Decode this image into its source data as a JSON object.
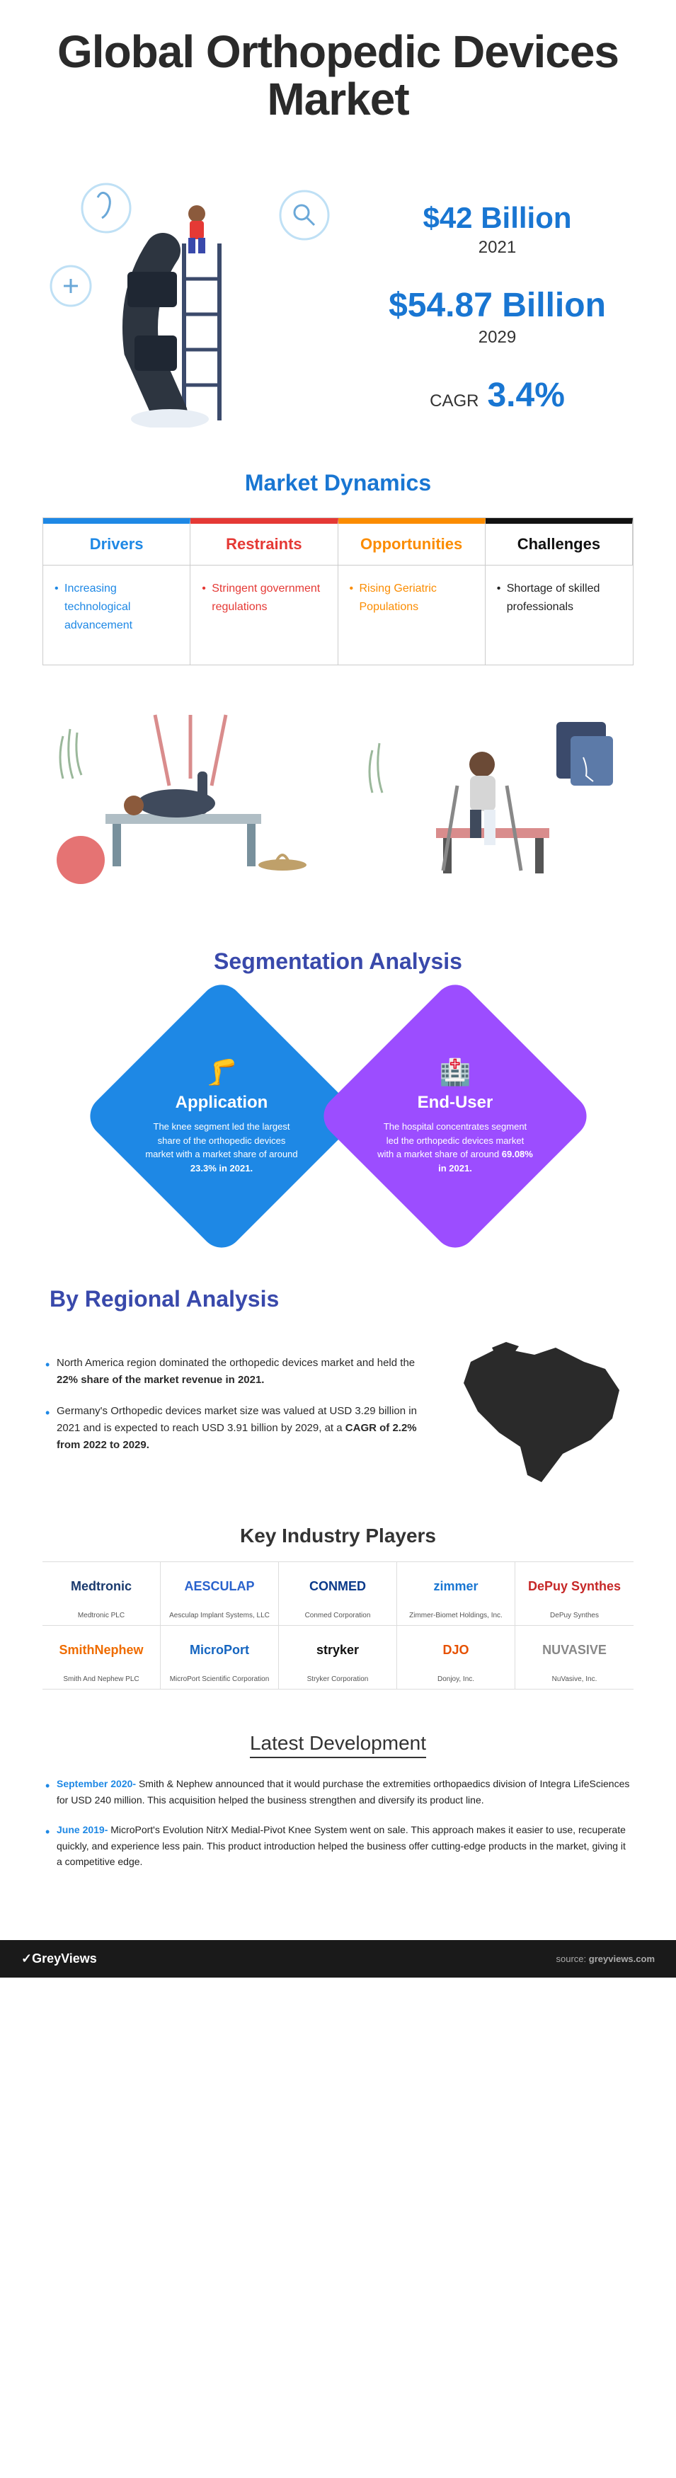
{
  "title": "Global Orthopedic Devices Market",
  "hero": {
    "stat1_value": "$42 Billion",
    "stat1_year": "2021",
    "stat2_value": "$54.87 Billion",
    "stat2_year": "2029",
    "cagr_label": "CAGR",
    "cagr_value": "3.4%"
  },
  "colors": {
    "primary_blue": "#1976d2",
    "accent_blue": "#1e88e5",
    "red": "#e53935",
    "orange": "#fb8c00",
    "dark": "#111111",
    "purple": "#9c4dff",
    "indigo": "#3949ab",
    "footer_bg": "#1a1a1a"
  },
  "dynamics": {
    "title": "Market Dynamics",
    "headers": {
      "drivers": "Drivers",
      "restraints": "Restraints",
      "opportunities": "Opportunities",
      "challenges": "Challenges"
    },
    "items": {
      "drivers": "Increasing technological advancement",
      "restraints": "Stringent government regulations",
      "opportunities": "Rising Geriatric Populations",
      "challenges": "Shortage of skilled professionals"
    }
  },
  "segmentation": {
    "title": "Segmentation Analysis",
    "application": {
      "label": "Application",
      "text_pre": "The knee segment led the largest share of the orthopedic devices market with a market share of around ",
      "bold": "23.3% in 2021.",
      "icon": "🦵"
    },
    "enduser": {
      "label": "End-User",
      "text_pre": "The hospital concentrates segment led the orthopedic devices market with a market share of around ",
      "bold": "69.08% in 2021.",
      "icon": "🏥"
    }
  },
  "regional": {
    "title": "By Regional Analysis",
    "point1_pre": "North America region dominated the orthopedic devices market and held the ",
    "point1_bold": "22% share of the market revenue in 2021.",
    "point2_pre": "Germany's Orthopedic devices market size was valued at USD 3.29 billion in 2021 and is expected to reach USD 3.91 billion by 2029, at a ",
    "point2_bold": "CAGR of 2.2% from 2022 to 2029."
  },
  "players": {
    "title": "Key Industry Players",
    "list": [
      {
        "logo": "Medtronic",
        "name": "Medtronic PLC",
        "color": "#1a3a6e"
      },
      {
        "logo": "AESCULAP",
        "name": "Aesculap Implant Systems, LLC",
        "color": "#2962cc"
      },
      {
        "logo": "CONMED",
        "name": "Conmed Corporation",
        "color": "#0b3a8a"
      },
      {
        "logo": "zimmer",
        "name": "Zimmer-Biomet Holdings, Inc.",
        "color": "#1976d2"
      },
      {
        "logo": "DePuy Synthes",
        "name": "DePuy Synthes",
        "color": "#c62828"
      },
      {
        "logo": "SmithNephew",
        "name": "Smith And Nephew PLC",
        "color": "#ef6c00"
      },
      {
        "logo": "MicroPort",
        "name": "MicroPort Scientific Corporation",
        "color": "#1565c0"
      },
      {
        "logo": "stryker",
        "name": "Stryker Corporation",
        "color": "#111111"
      },
      {
        "logo": "DJO",
        "name": "Donjoy, Inc.",
        "color": "#e65100"
      },
      {
        "logo": "NUVASIVE",
        "name": "NuVasive, Inc.",
        "color": "#888888"
      }
    ]
  },
  "developments": {
    "title": "Latest Development",
    "items": [
      {
        "date": "September 2020- ",
        "text": "Smith & Nephew announced that it would purchase the extremities orthopaedics division of Integra LifeSciences for USD 240 million. This acquisition helped the business strengthen and diversify its product line."
      },
      {
        "date": "June 2019- ",
        "text": "MicroPort's Evolution NitrX Medial-Pivot Knee System went on sale. This approach makes it easier to use, recuperate quickly, and experience less pain. This product introduction helped the business offer cutting-edge products in the market, giving it a competitive edge."
      }
    ]
  },
  "footer": {
    "logo": "✓GreyViews",
    "source_label": "source:",
    "source_value": "greyviews.com"
  }
}
